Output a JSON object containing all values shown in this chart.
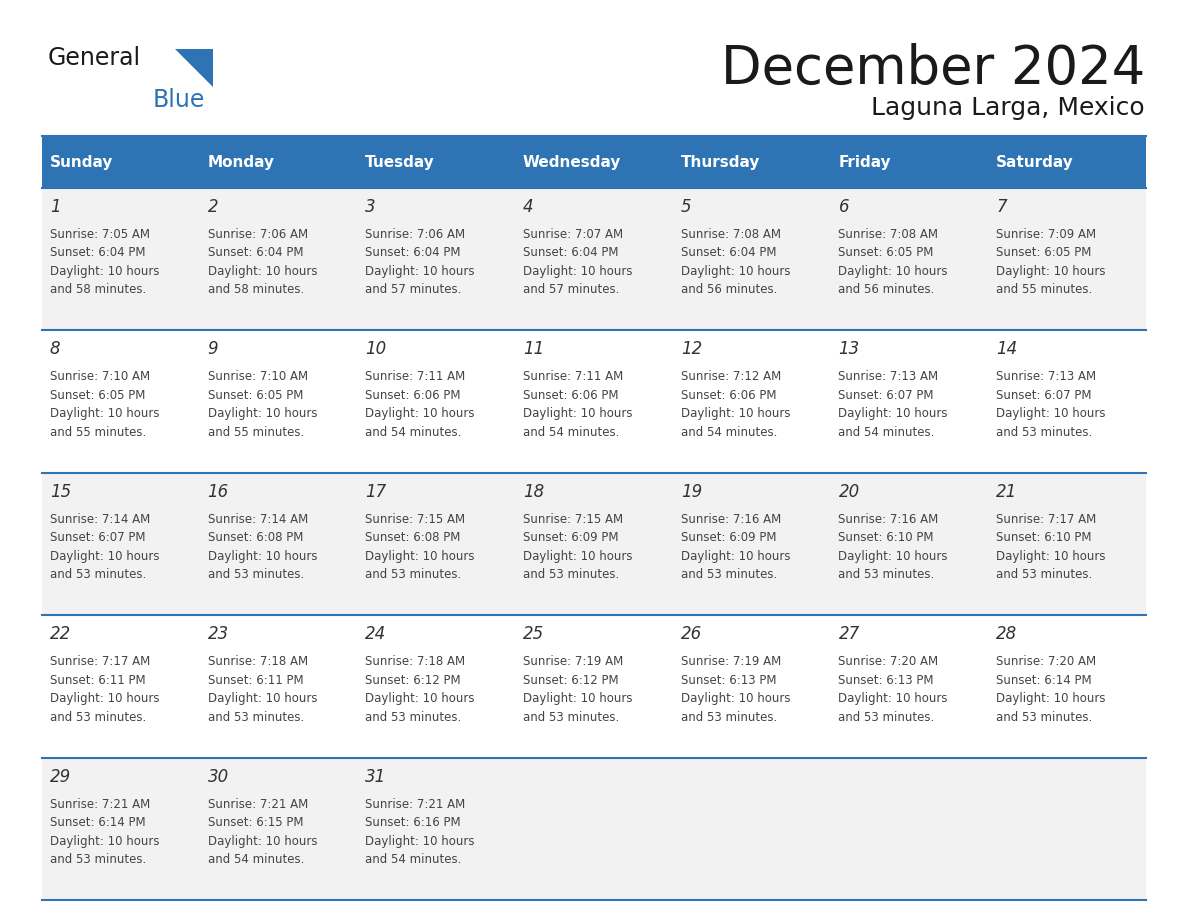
{
  "title": "December 2024",
  "subtitle": "Laguna Larga, Mexico",
  "header_bg": "#2E74B5",
  "header_text": "#FFFFFF",
  "cell_bg_odd": "#F2F2F2",
  "cell_bg_even": "#FFFFFF",
  "border_color": "#2E74B5",
  "day_names": [
    "Sunday",
    "Monday",
    "Tuesday",
    "Wednesday",
    "Thursday",
    "Friday",
    "Saturday"
  ],
  "days": [
    {
      "day": 1,
      "col": 0,
      "row": 0,
      "sunrise": "7:05 AM",
      "sunset": "6:04 PM",
      "daylight_mins": "58"
    },
    {
      "day": 2,
      "col": 1,
      "row": 0,
      "sunrise": "7:06 AM",
      "sunset": "6:04 PM",
      "daylight_mins": "58"
    },
    {
      "day": 3,
      "col": 2,
      "row": 0,
      "sunrise": "7:06 AM",
      "sunset": "6:04 PM",
      "daylight_mins": "57"
    },
    {
      "day": 4,
      "col": 3,
      "row": 0,
      "sunrise": "7:07 AM",
      "sunset": "6:04 PM",
      "daylight_mins": "57"
    },
    {
      "day": 5,
      "col": 4,
      "row": 0,
      "sunrise": "7:08 AM",
      "sunset": "6:04 PM",
      "daylight_mins": "56"
    },
    {
      "day": 6,
      "col": 5,
      "row": 0,
      "sunrise": "7:08 AM",
      "sunset": "6:05 PM",
      "daylight_mins": "56"
    },
    {
      "day": 7,
      "col": 6,
      "row": 0,
      "sunrise": "7:09 AM",
      "sunset": "6:05 PM",
      "daylight_mins": "55"
    },
    {
      "day": 8,
      "col": 0,
      "row": 1,
      "sunrise": "7:10 AM",
      "sunset": "6:05 PM",
      "daylight_mins": "55"
    },
    {
      "day": 9,
      "col": 1,
      "row": 1,
      "sunrise": "7:10 AM",
      "sunset": "6:05 PM",
      "daylight_mins": "55"
    },
    {
      "day": 10,
      "col": 2,
      "row": 1,
      "sunrise": "7:11 AM",
      "sunset": "6:06 PM",
      "daylight_mins": "54"
    },
    {
      "day": 11,
      "col": 3,
      "row": 1,
      "sunrise": "7:11 AM",
      "sunset": "6:06 PM",
      "daylight_mins": "54"
    },
    {
      "day": 12,
      "col": 4,
      "row": 1,
      "sunrise": "7:12 AM",
      "sunset": "6:06 PM",
      "daylight_mins": "54"
    },
    {
      "day": 13,
      "col": 5,
      "row": 1,
      "sunrise": "7:13 AM",
      "sunset": "6:07 PM",
      "daylight_mins": "54"
    },
    {
      "day": 14,
      "col": 6,
      "row": 1,
      "sunrise": "7:13 AM",
      "sunset": "6:07 PM",
      "daylight_mins": "53"
    },
    {
      "day": 15,
      "col": 0,
      "row": 2,
      "sunrise": "7:14 AM",
      "sunset": "6:07 PM",
      "daylight_mins": "53"
    },
    {
      "day": 16,
      "col": 1,
      "row": 2,
      "sunrise": "7:14 AM",
      "sunset": "6:08 PM",
      "daylight_mins": "53"
    },
    {
      "day": 17,
      "col": 2,
      "row": 2,
      "sunrise": "7:15 AM",
      "sunset": "6:08 PM",
      "daylight_mins": "53"
    },
    {
      "day": 18,
      "col": 3,
      "row": 2,
      "sunrise": "7:15 AM",
      "sunset": "6:09 PM",
      "daylight_mins": "53"
    },
    {
      "day": 19,
      "col": 4,
      "row": 2,
      "sunrise": "7:16 AM",
      "sunset": "6:09 PM",
      "daylight_mins": "53"
    },
    {
      "day": 20,
      "col": 5,
      "row": 2,
      "sunrise": "7:16 AM",
      "sunset": "6:10 PM",
      "daylight_mins": "53"
    },
    {
      "day": 21,
      "col": 6,
      "row": 2,
      "sunrise": "7:17 AM",
      "sunset": "6:10 PM",
      "daylight_mins": "53"
    },
    {
      "day": 22,
      "col": 0,
      "row": 3,
      "sunrise": "7:17 AM",
      "sunset": "6:11 PM",
      "daylight_mins": "53"
    },
    {
      "day": 23,
      "col": 1,
      "row": 3,
      "sunrise": "7:18 AM",
      "sunset": "6:11 PM",
      "daylight_mins": "53"
    },
    {
      "day": 24,
      "col": 2,
      "row": 3,
      "sunrise": "7:18 AM",
      "sunset": "6:12 PM",
      "daylight_mins": "53"
    },
    {
      "day": 25,
      "col": 3,
      "row": 3,
      "sunrise": "7:19 AM",
      "sunset": "6:12 PM",
      "daylight_mins": "53"
    },
    {
      "day": 26,
      "col": 4,
      "row": 3,
      "sunrise": "7:19 AM",
      "sunset": "6:13 PM",
      "daylight_mins": "53"
    },
    {
      "day": 27,
      "col": 5,
      "row": 3,
      "sunrise": "7:20 AM",
      "sunset": "6:13 PM",
      "daylight_mins": "53"
    },
    {
      "day": 28,
      "col": 6,
      "row": 3,
      "sunrise": "7:20 AM",
      "sunset": "6:14 PM",
      "daylight_mins": "53"
    },
    {
      "day": 29,
      "col": 0,
      "row": 4,
      "sunrise": "7:21 AM",
      "sunset": "6:14 PM",
      "daylight_mins": "53"
    },
    {
      "day": 30,
      "col": 1,
      "row": 4,
      "sunrise": "7:21 AM",
      "sunset": "6:15 PM",
      "daylight_mins": "54"
    },
    {
      "day": 31,
      "col": 2,
      "row": 4,
      "sunrise": "7:21 AM",
      "sunset": "6:16 PM",
      "daylight_mins": "54"
    }
  ],
  "title_fontsize": 38,
  "subtitle_fontsize": 18,
  "header_fontsize": 11,
  "day_num_fontsize": 12,
  "cell_fontsize": 8.5,
  "logo_general_fontsize": 17,
  "logo_blue_fontsize": 17
}
